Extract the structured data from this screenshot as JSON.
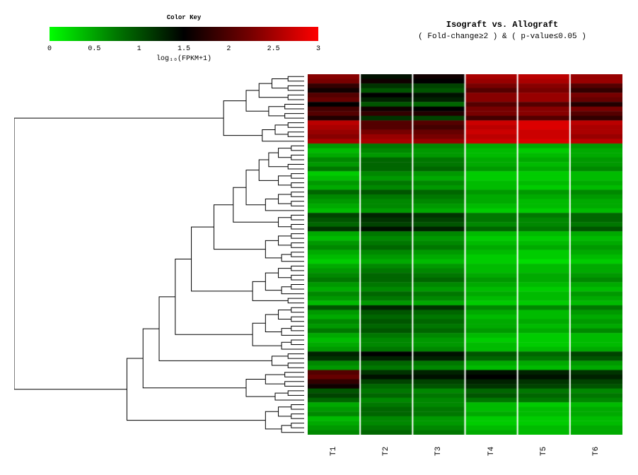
{
  "color_key": {
    "title": "Color Key",
    "gradient_stops": [
      "#00ff00",
      "#007700",
      "#000000",
      "#770000",
      "#ff0000"
    ],
    "ticks": [
      "0",
      "0.5",
      "1",
      "1.5",
      "2",
      "2.5",
      "3"
    ],
    "axis_label": "log₁₀(FPKM+1)",
    "title_fontsize": 9,
    "tick_fontsize": 10
  },
  "header": {
    "title": "Isograft vs. Allograft",
    "subtitle": "( Fold-change≥2 ) & ( p-value≤0.05 )",
    "title_fontsize": 12,
    "subtitle_fontsize": 11
  },
  "columns": [
    "T1",
    "T2",
    "T3",
    "T4",
    "T5",
    "T6"
  ],
  "heatmap": {
    "type": "heatmap",
    "n_rows": 78,
    "n_cols": 6,
    "colorscale_min": 0,
    "colorscale_max": 3,
    "colors": {
      "low": "#00ff00",
      "mid": "#000000",
      "high": "#ff0000"
    },
    "background_color": "#ffffff",
    "values": [
      [
        2.3,
        1.4,
        1.6,
        2.5,
        2.6,
        2.4
      ],
      [
        2.2,
        1.6,
        1.5,
        2.4,
        2.5,
        2.4
      ],
      [
        1.8,
        1.2,
        1.1,
        2.2,
        2.3,
        2.0
      ],
      [
        1.6,
        1.0,
        1.0,
        2.0,
        2.2,
        1.8
      ],
      [
        2.0,
        1.5,
        1.4,
        2.3,
        2.4,
        2.2
      ],
      [
        2.1,
        1.3,
        1.3,
        2.3,
        2.4,
        2.1
      ],
      [
        1.5,
        1.0,
        0.9,
        2.0,
        2.0,
        1.7
      ],
      [
        1.9,
        1.6,
        1.5,
        2.2,
        2.3,
        2.2
      ],
      [
        2.0,
        1.8,
        1.7,
        2.2,
        2.3,
        2.0
      ],
      [
        1.7,
        1.2,
        1.1,
        1.9,
        2.0,
        1.8
      ],
      [
        2.6,
        2.0,
        2.0,
        2.7,
        2.8,
        2.6
      ],
      [
        2.5,
        2.0,
        1.9,
        2.6,
        2.8,
        2.5
      ],
      [
        2.4,
        2.2,
        2.1,
        2.7,
        2.7,
        2.5
      ],
      [
        2.3,
        2.4,
        2.2,
        2.6,
        2.7,
        2.4
      ],
      [
        2.5,
        2.5,
        2.4,
        2.7,
        2.8,
        2.6
      ],
      [
        0.6,
        0.8,
        0.7,
        0.5,
        0.5,
        0.6
      ],
      [
        0.4,
        0.7,
        0.6,
        0.4,
        0.3,
        0.5
      ],
      [
        0.5,
        0.6,
        0.6,
        0.4,
        0.4,
        0.5
      ],
      [
        0.7,
        0.9,
        0.8,
        0.5,
        0.5,
        0.6
      ],
      [
        0.6,
        0.9,
        0.8,
        0.5,
        0.4,
        0.6
      ],
      [
        0.8,
        0.9,
        0.9,
        0.6,
        0.5,
        0.7
      ],
      [
        0.3,
        0.7,
        0.6,
        0.3,
        0.3,
        0.4
      ],
      [
        0.4,
        0.6,
        0.5,
        0.3,
        0.3,
        0.4
      ],
      [
        0.6,
        0.8,
        0.7,
        0.4,
        0.4,
        0.5
      ],
      [
        0.5,
        0.7,
        0.6,
        0.4,
        0.3,
        0.4
      ],
      [
        0.9,
        1.0,
        0.9,
        0.6,
        0.6,
        0.7
      ],
      [
        0.7,
        0.8,
        0.8,
        0.5,
        0.5,
        0.6
      ],
      [
        0.6,
        0.7,
        0.7,
        0.5,
        0.4,
        0.5
      ],
      [
        0.5,
        0.7,
        0.6,
        0.4,
        0.4,
        0.5
      ],
      [
        0.4,
        0.6,
        0.5,
        0.3,
        0.3,
        0.4
      ],
      [
        1.1,
        1.3,
        1.2,
        0.8,
        0.8,
        0.9
      ],
      [
        1.0,
        1.2,
        1.1,
        0.8,
        0.7,
        0.9
      ],
      [
        0.9,
        1.1,
        1.0,
        0.7,
        0.7,
        0.8
      ],
      [
        1.2,
        1.4,
        1.3,
        0.9,
        0.8,
        1.0
      ],
      [
        0.5,
        0.8,
        0.7,
        0.4,
        0.4,
        0.5
      ],
      [
        0.4,
        0.7,
        0.6,
        0.3,
        0.3,
        0.4
      ],
      [
        0.6,
        0.8,
        0.7,
        0.4,
        0.4,
        0.5
      ],
      [
        0.7,
        0.9,
        0.8,
        0.5,
        0.5,
        0.6
      ],
      [
        0.5,
        0.7,
        0.6,
        0.4,
        0.3,
        0.5
      ],
      [
        0.4,
        0.6,
        0.5,
        0.3,
        0.3,
        0.4
      ],
      [
        0.3,
        0.5,
        0.4,
        0.3,
        0.2,
        0.3
      ],
      [
        0.5,
        0.7,
        0.6,
        0.4,
        0.4,
        0.5
      ],
      [
        0.6,
        0.8,
        0.7,
        0.4,
        0.4,
        0.5
      ],
      [
        0.7,
        0.9,
        0.8,
        0.5,
        0.5,
        0.6
      ],
      [
        0.8,
        0.9,
        0.9,
        0.6,
        0.5,
        0.7
      ],
      [
        0.6,
        0.8,
        0.7,
        0.5,
        0.4,
        0.5
      ],
      [
        0.5,
        0.7,
        0.6,
        0.4,
        0.3,
        0.4
      ],
      [
        0.7,
        0.9,
        0.8,
        0.5,
        0.4,
        0.6
      ],
      [
        0.6,
        0.8,
        0.7,
        0.4,
        0.4,
        0.5
      ],
      [
        0.4,
        0.6,
        0.5,
        0.3,
        0.3,
        0.4
      ],
      [
        1.0,
        1.3,
        1.2,
        0.7,
        0.7,
        0.8
      ],
      [
        0.6,
        1.0,
        0.9,
        0.5,
        0.4,
        0.6
      ],
      [
        0.5,
        0.9,
        0.8,
        0.4,
        0.4,
        0.5
      ],
      [
        0.7,
        1.0,
        0.9,
        0.5,
        0.5,
        0.6
      ],
      [
        0.6,
        0.9,
        0.8,
        0.5,
        0.4,
        0.5
      ],
      [
        0.8,
        1.0,
        0.9,
        0.6,
        0.5,
        0.7
      ],
      [
        0.5,
        0.8,
        0.7,
        0.4,
        0.3,
        0.4
      ],
      [
        0.4,
        0.7,
        0.6,
        0.3,
        0.3,
        0.4
      ],
      [
        0.5,
        0.7,
        0.6,
        0.4,
        0.3,
        0.4
      ],
      [
        0.6,
        0.8,
        0.7,
        0.4,
        0.4,
        0.5
      ],
      [
        1.3,
        1.5,
        1.4,
        1.0,
        0.9,
        1.1
      ],
      [
        1.2,
        1.3,
        1.3,
        0.9,
        0.8,
        1.0
      ],
      [
        0.7,
        0.9,
        0.8,
        0.5,
        0.5,
        0.6
      ],
      [
        0.6,
        0.8,
        0.7,
        0.4,
        0.4,
        0.5
      ],
      [
        2.0,
        1.2,
        1.3,
        1.4,
        1.3,
        1.2
      ],
      [
        2.1,
        1.4,
        1.4,
        1.5,
        1.4,
        1.3
      ],
      [
        1.8,
        1.1,
        1.1,
        1.3,
        1.2,
        1.1
      ],
      [
        1.6,
        0.9,
        1.0,
        1.2,
        1.1,
        1.0
      ],
      [
        1.0,
        0.8,
        0.7,
        0.9,
        0.8,
        0.7
      ],
      [
        1.1,
        0.9,
        0.8,
        1.0,
        0.9,
        0.8
      ],
      [
        0.9,
        0.7,
        0.7,
        0.8,
        0.8,
        0.7
      ],
      [
        0.5,
        0.8,
        0.7,
        0.4,
        0.3,
        0.4
      ],
      [
        0.6,
        0.9,
        0.8,
        0.4,
        0.4,
        0.5
      ],
      [
        0.7,
        0.9,
        0.8,
        0.5,
        0.4,
        0.5
      ],
      [
        0.4,
        0.7,
        0.6,
        0.3,
        0.3,
        0.4
      ],
      [
        0.5,
        0.7,
        0.6,
        0.3,
        0.3,
        0.4
      ],
      [
        0.6,
        0.8,
        0.7,
        0.4,
        0.4,
        0.5
      ],
      [
        0.7,
        0.9,
        0.8,
        0.5,
        0.4,
        0.5
      ]
    ]
  },
  "dendrogram": {
    "type": "tree",
    "stroke": "#000000",
    "stroke_width": 1,
    "merges": [
      [
        0,
        1,
        0.05
      ],
      [
        2,
        3,
        0.05
      ],
      [
        78,
        79,
        0.1
      ],
      [
        4,
        5,
        0.05
      ],
      [
        80,
        81,
        0.14
      ],
      [
        6,
        7,
        0.06
      ],
      [
        8,
        9,
        0.06
      ],
      [
        83,
        84,
        0.11
      ],
      [
        82,
        85,
        0.18
      ],
      [
        10,
        11,
        0.05
      ],
      [
        12,
        13,
        0.05
      ],
      [
        87,
        88,
        0.09
      ],
      [
        14,
        89,
        0.13
      ],
      [
        86,
        90,
        0.25
      ],
      [
        15,
        16,
        0.04
      ],
      [
        17,
        18,
        0.04
      ],
      [
        92,
        93,
        0.08
      ],
      [
        19,
        20,
        0.05
      ],
      [
        94,
        95,
        0.11
      ],
      [
        21,
        22,
        0.04
      ],
      [
        23,
        24,
        0.04
      ],
      [
        97,
        98,
        0.08
      ],
      [
        96,
        99,
        0.14
      ],
      [
        25,
        26,
        0.04
      ],
      [
        27,
        28,
        0.04
      ],
      [
        101,
        102,
        0.08
      ],
      [
        29,
        103,
        0.12
      ],
      [
        100,
        104,
        0.18
      ],
      [
        30,
        31,
        0.04
      ],
      [
        32,
        33,
        0.04
      ],
      [
        106,
        107,
        0.08
      ],
      [
        105,
        108,
        0.22
      ],
      [
        34,
        35,
        0.04
      ],
      [
        36,
        37,
        0.04
      ],
      [
        110,
        111,
        0.08
      ],
      [
        38,
        39,
        0.04
      ],
      [
        40,
        113,
        0.07
      ],
      [
        112,
        114,
        0.12
      ],
      [
        109,
        115,
        0.28
      ],
      [
        41,
        42,
        0.04
      ],
      [
        43,
        44,
        0.04
      ],
      [
        117,
        118,
        0.08
      ],
      [
        45,
        46,
        0.04
      ],
      [
        47,
        120,
        0.07
      ],
      [
        119,
        121,
        0.12
      ],
      [
        48,
        49,
        0.05
      ],
      [
        122,
        123,
        0.16
      ],
      [
        116,
        124,
        0.35
      ],
      [
        50,
        51,
        0.04
      ],
      [
        52,
        53,
        0.04
      ],
      [
        126,
        127,
        0.08
      ],
      [
        54,
        55,
        0.04
      ],
      [
        56,
        129,
        0.07
      ],
      [
        128,
        130,
        0.12
      ],
      [
        57,
        58,
        0.04
      ],
      [
        59,
        132,
        0.07
      ],
      [
        131,
        133,
        0.16
      ],
      [
        125,
        134,
        0.4
      ],
      [
        60,
        61,
        0.05
      ],
      [
        62,
        63,
        0.05
      ],
      [
        136,
        137,
        0.1
      ],
      [
        135,
        138,
        0.45
      ],
      [
        64,
        65,
        0.06
      ],
      [
        66,
        67,
        0.06
      ],
      [
        140,
        141,
        0.12
      ],
      [
        68,
        69,
        0.05
      ],
      [
        70,
        143,
        0.09
      ],
      [
        142,
        144,
        0.18
      ],
      [
        139,
        145,
        0.5
      ],
      [
        71,
        72,
        0.04
      ],
      [
        73,
        74,
        0.04
      ],
      [
        147,
        148,
        0.08
      ],
      [
        75,
        76,
        0.04
      ],
      [
        77,
        150,
        0.07
      ],
      [
        149,
        151,
        0.12
      ],
      [
        146,
        152,
        0.55
      ],
      [
        91,
        153,
        0.9
      ]
    ]
  }
}
